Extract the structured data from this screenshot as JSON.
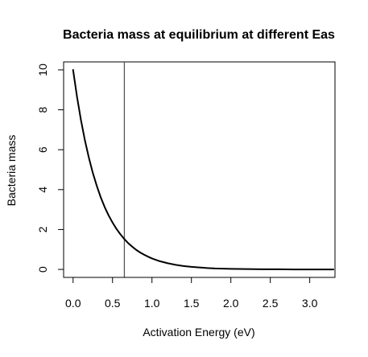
{
  "chart_data": {
    "type": "line",
    "title": "Bacteria mass at equilibrium at different Eas",
    "xlabel": "Activation Energy (eV)",
    "ylabel": "Bacteria mass",
    "xlim": [
      -0.12,
      3.32
    ],
    "ylim": [
      -0.4,
      10.4
    ],
    "xticks": [
      0.0,
      0.5,
      1.0,
      1.5,
      2.0,
      2.5,
      3.0
    ],
    "xtick_labels": [
      "0.0",
      "0.5",
      "1.0",
      "1.5",
      "2.0",
      "2.5",
      "3.0"
    ],
    "yticks": [
      0,
      2,
      4,
      6,
      8,
      10
    ],
    "ytick_labels": [
      "0",
      "2",
      "4",
      "6",
      "8",
      "10"
    ],
    "grid": false,
    "series": [
      {
        "x": [
          0.0,
          0.05,
          0.1,
          0.15,
          0.2,
          0.25,
          0.3,
          0.35,
          0.4,
          0.45,
          0.5,
          0.55,
          0.6,
          0.65,
          0.7,
          0.75,
          0.8,
          0.85,
          0.9,
          0.95,
          1.0,
          1.1,
          1.2,
          1.3,
          1.4,
          1.5,
          1.6,
          1.7,
          1.8,
          1.9,
          2.0,
          2.2,
          2.4,
          2.6,
          2.8,
          3.0,
          3.2,
          3.3
        ],
        "y": [
          10.0,
          8.65,
          7.48,
          6.47,
          5.6,
          4.84,
          4.19,
          3.62,
          3.13,
          2.71,
          2.35,
          2.03,
          1.76,
          1.52,
          1.31,
          1.14,
          0.98,
          0.85,
          0.74,
          0.64,
          0.55,
          0.41,
          0.31,
          0.23,
          0.17,
          0.13,
          0.1,
          0.07,
          0.05,
          0.04,
          0.03,
          0.02,
          0.01,
          0.01,
          0.0,
          0.0,
          0.0,
          0.0
        ],
        "color": "#000000"
      }
    ],
    "vline": {
      "x": 0.65,
      "color": "#555555"
    }
  }
}
